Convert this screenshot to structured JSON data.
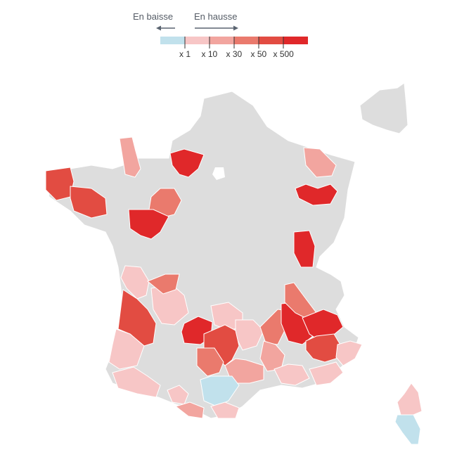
{
  "legend": {
    "decrease_label": "En baisse",
    "increase_label": "En hausse",
    "scale": [
      {
        "color": "#c1e1ec"
      },
      {
        "color": "#f7c6c6",
        "tick": "x 1"
      },
      {
        "color": "#f2a59f",
        "tick": "x 10"
      },
      {
        "color": "#ea7a6d",
        "tick": "x 30"
      },
      {
        "color": "#e24c42",
        "tick": "x 50"
      },
      {
        "color": "#e0282a",
        "tick": "x 500"
      }
    ]
  },
  "map": {
    "no_data_color": "#dddddd",
    "regions": [
      {
        "name": "Manche",
        "level": 2
      },
      {
        "name": "Finistère",
        "level": 4
      },
      {
        "name": "Morbihan",
        "level": 4
      },
      {
        "name": "Eure",
        "level": 5
      },
      {
        "name": "Sarthe",
        "level": 3
      },
      {
        "name": "Indre-et-Loire",
        "level": 5
      },
      {
        "name": "Moselle",
        "level": 2
      },
      {
        "name": "Meuse-Marne",
        "level": 5
      },
      {
        "name": "Jura",
        "level": 5
      },
      {
        "name": "Charente-Maritime",
        "level": 1
      },
      {
        "name": "Charente",
        "level": 1
      },
      {
        "name": "Haute-Vienne",
        "level": 3
      },
      {
        "name": "Gironde",
        "level": 4
      },
      {
        "name": "Dordogne",
        "level": 1
      },
      {
        "name": "Landes",
        "level": 1
      },
      {
        "name": "Lot",
        "level": 5
      },
      {
        "name": "Cantal",
        "level": 1
      },
      {
        "name": "Aveyron",
        "level": 4
      },
      {
        "name": "Tarn-et-Garonne",
        "level": 3
      },
      {
        "name": "Lozère",
        "level": 2
      },
      {
        "name": "Ardèche",
        "level": 3
      },
      {
        "name": "Drôme",
        "level": 5
      },
      {
        "name": "Isère",
        "level": 3
      },
      {
        "name": "Savoie",
        "level": 5
      },
      {
        "name": "Hautes-Alpes",
        "level": 4
      },
      {
        "name": "Gard",
        "level": 2
      },
      {
        "name": "Vaucluse",
        "level": 1
      },
      {
        "name": "Alpes-Maritimes",
        "level": 1
      },
      {
        "name": "Var",
        "level": 1
      },
      {
        "name": "Pyrénées-Atlantiques",
        "level": 1
      },
      {
        "name": "Hautes-Pyrénées",
        "level": 1
      },
      {
        "name": "Tarn",
        "level": 2
      },
      {
        "name": "Hérault",
        "level": 0
      },
      {
        "name": "Pyrénées-Orientales",
        "level": 1
      },
      {
        "name": "Haute-Corse",
        "level": 1
      },
      {
        "name": "Corse-du-Sud",
        "level": 0
      }
    ]
  }
}
